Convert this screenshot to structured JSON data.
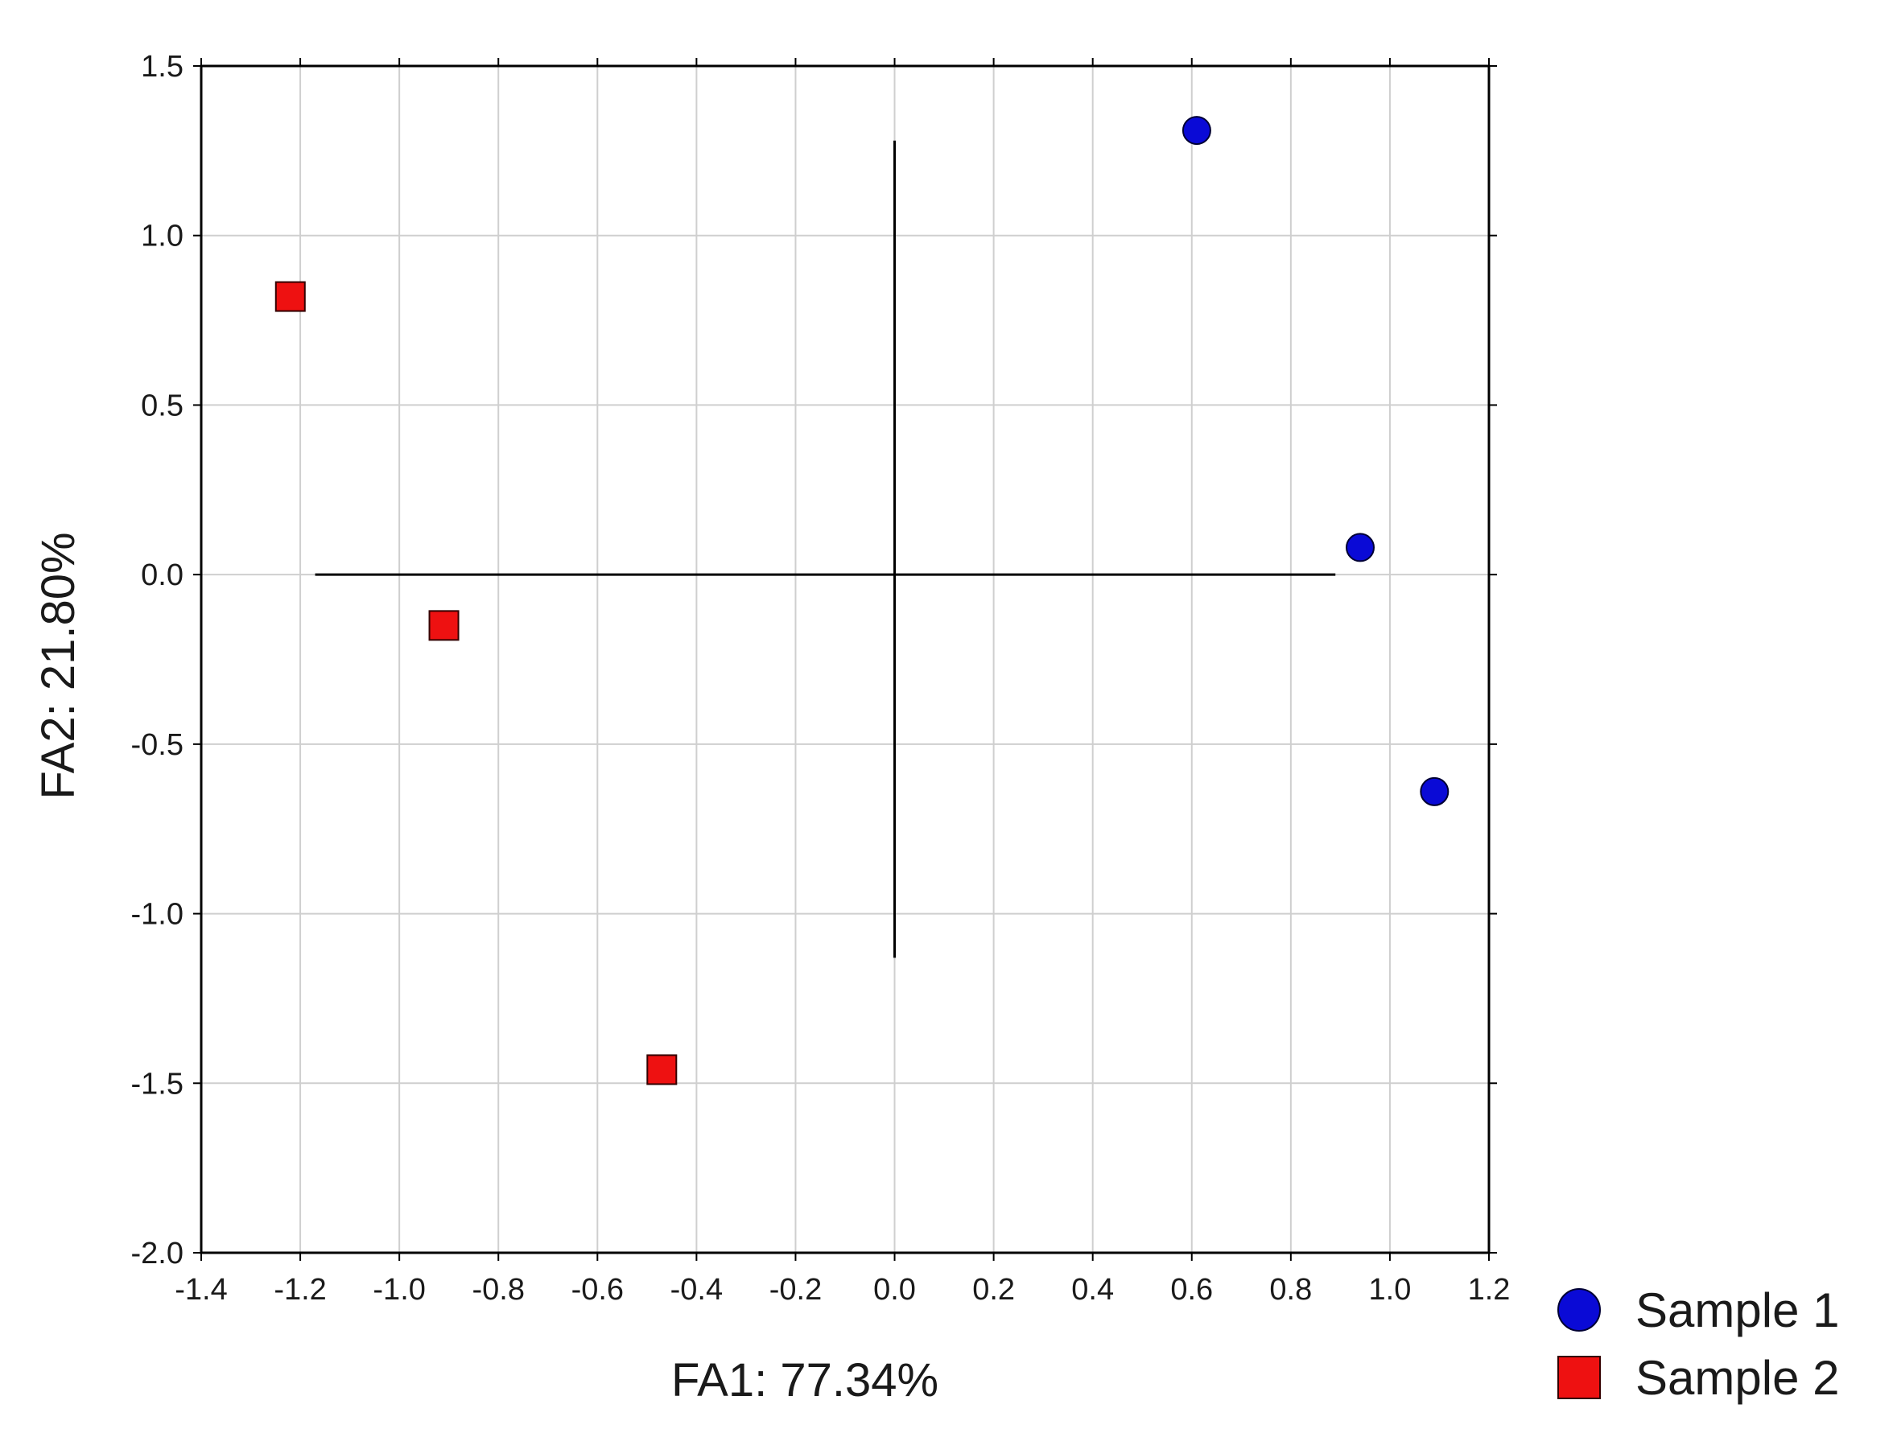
{
  "chart_data": {
    "type": "scatter",
    "xlabel": "FA1: 77.34%",
    "ylabel": "FA2: 21.80%",
    "xlim": [
      -1.4,
      1.2
    ],
    "ylim": [
      -2.0,
      1.5
    ],
    "x_ticks": [
      "-1.4",
      "-1.2",
      "-1.0",
      "-0.8",
      "-0.6",
      "-0.4",
      "-0.2",
      "0.0",
      "0.2",
      "0.4",
      "0.6",
      "0.8",
      "1.0",
      "1.2"
    ],
    "y_ticks": [
      "1.5",
      "1.0",
      "0.5",
      "0.0",
      "-0.5",
      "-1.0",
      "-1.5",
      "-2.0"
    ],
    "grid": true,
    "legend_position": "bottom-right outside plot",
    "reference_lines": {
      "horizontal": {
        "y": 0.0,
        "x_from": -1.17,
        "x_to": 0.89
      },
      "vertical": {
        "x": 0.0,
        "y_from": -1.13,
        "y_to": 1.28
      }
    },
    "series": [
      {
        "name": "Sample 1",
        "marker": "circle",
        "color": "#0a0ad6",
        "points": [
          {
            "x": 0.61,
            "y": 1.31
          },
          {
            "x": 0.94,
            "y": 0.08
          },
          {
            "x": 1.09,
            "y": -0.64
          }
        ]
      },
      {
        "name": "Sample 2",
        "marker": "square",
        "color": "#ee1111",
        "points": [
          {
            "x": -1.22,
            "y": 0.82
          },
          {
            "x": -0.91,
            "y": -0.15
          },
          {
            "x": -0.47,
            "y": -1.46
          }
        ]
      }
    ]
  }
}
